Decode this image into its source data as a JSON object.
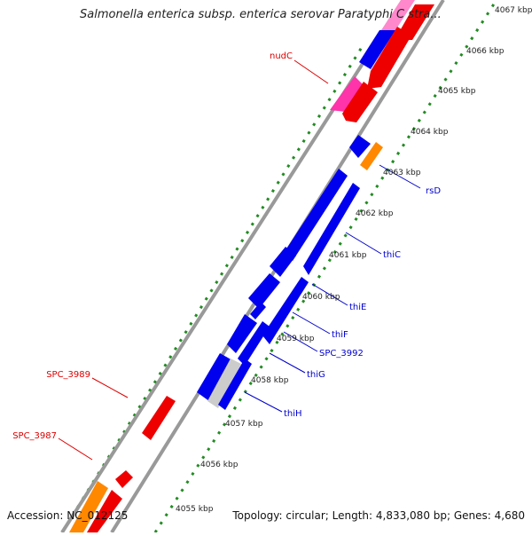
{
  "title": "Salmonella enterica subsp. enterica serovar Paratyphi C stra...",
  "footer": {
    "accession": "Accession: NC_012125",
    "summary": "Topology: circular; Length: 4,833,080 bp; Genes: 4,680"
  },
  "colors": {
    "backbone": "#999999",
    "tick": "#228b22",
    "forward_strand": "#0000ee",
    "reverse_strand": "#ee0000",
    "rna": "#ff8800",
    "other": "#ff33aa",
    "pseudo": "#bbbbbb",
    "label_forward": "#0000cc",
    "label_reverse": "#dd0000"
  },
  "scale_labels": [
    "4055 kbp",
    "4056 kbp",
    "4057 kbp",
    "4058 kbp",
    "4059 kbp",
    "4060 kbp",
    "4061 kbp",
    "4062 kbp",
    "4063 kbp",
    "4064 kbp",
    "4065 kbp",
    "4066 kbp",
    "4067 kbp"
  ],
  "gene_labels": {
    "forward": [
      "rsD",
      "thiC",
      "thiE",
      "thiF",
      "SPC_3992",
      "thiG",
      "thiH"
    ],
    "reverse": [
      "nudC",
      "SPC_3989",
      "SPC_3987"
    ]
  }
}
